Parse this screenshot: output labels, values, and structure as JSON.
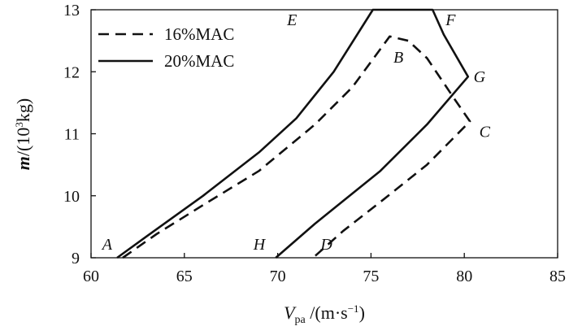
{
  "chart_data": {
    "type": "line",
    "xlabel": "V_pa /(m·s⁻¹)",
    "ylabel": "m/(10³kg)",
    "xlim": [
      60,
      85
    ],
    "ylim": [
      9,
      13
    ],
    "x_ticks": [
      "60",
      "65",
      "70",
      "75",
      "80",
      "85"
    ],
    "y_ticks": [
      "9",
      "10",
      "11",
      "12",
      "13"
    ],
    "legend": {
      "position": "top-left",
      "entries": [
        "16%MAC",
        "20%MAC"
      ]
    },
    "series": [
      {
        "name": "16%MAC",
        "style": "dashed",
        "points": [
          [
            61.7,
            9.0
          ],
          [
            63.5,
            9.38
          ],
          [
            66.0,
            9.85
          ],
          [
            69.0,
            10.4
          ],
          [
            72.0,
            11.15
          ],
          [
            74.0,
            11.75
          ],
          [
            76.0,
            12.57
          ],
          [
            77.0,
            12.5
          ],
          [
            78.0,
            12.22
          ],
          [
            79.5,
            11.55
          ],
          [
            80.3,
            11.2
          ],
          [
            78.0,
            10.5
          ],
          [
            75.5,
            9.9
          ],
          [
            73.5,
            9.43
          ],
          [
            71.9,
            9.0
          ]
        ]
      },
      {
        "name": "20%MAC",
        "style": "solid",
        "points": [
          [
            61.4,
            9.0
          ],
          [
            63.0,
            9.35
          ],
          [
            66.0,
            10.0
          ],
          [
            69.0,
            10.7
          ],
          [
            71.0,
            11.25
          ],
          [
            73.0,
            12.0
          ],
          [
            75.1,
            13.0
          ],
          [
            78.3,
            13.0
          ],
          [
            78.9,
            12.6
          ],
          [
            80.2,
            11.92
          ],
          [
            78.0,
            11.15
          ],
          [
            75.5,
            10.4
          ],
          [
            72.0,
            9.55
          ],
          [
            69.9,
            9.0
          ]
        ]
      }
    ],
    "point_labels": [
      {
        "text": "A",
        "x": 60.6,
        "y": 9.13
      },
      {
        "text": "B",
        "x": 76.2,
        "y": 12.15
      },
      {
        "text": "C",
        "x": 80.8,
        "y": 10.95
      },
      {
        "text": "D",
        "x": 72.3,
        "y": 9.13
      },
      {
        "text": "E",
        "x": 70.5,
        "y": 12.75
      },
      {
        "text": "F",
        "x": 79.0,
        "y": 12.75
      },
      {
        "text": "G",
        "x": 80.5,
        "y": 11.83
      },
      {
        "text": "H",
        "x": 68.7,
        "y": 9.13
      }
    ]
  }
}
